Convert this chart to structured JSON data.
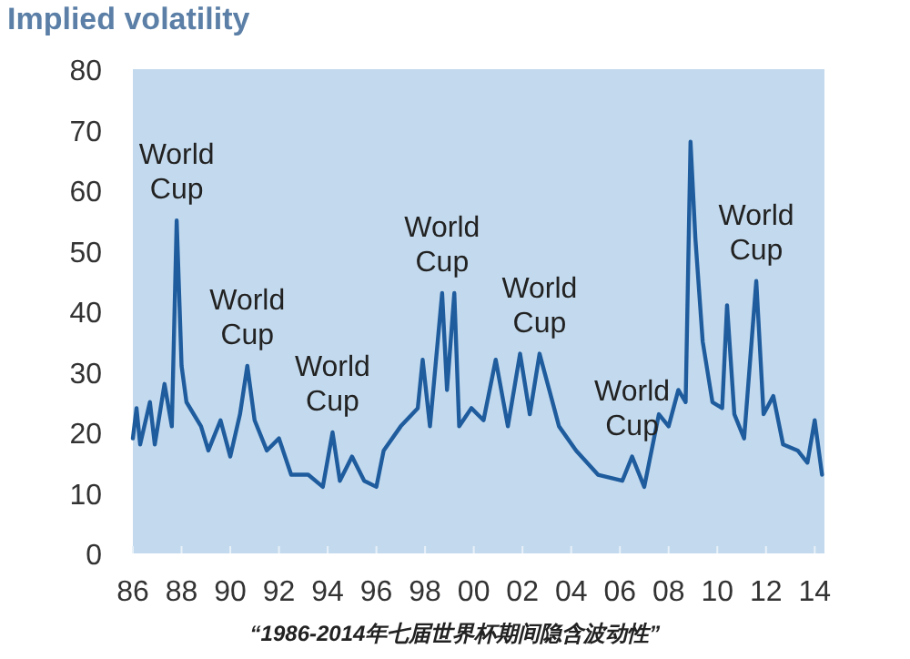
{
  "chart_data": {
    "type": "line",
    "title": "Implied volatility",
    "x": [
      1986.0,
      1986.15,
      1986.3,
      1986.7,
      1986.9,
      1987.3,
      1987.6,
      1987.8,
      1988.0,
      1988.2,
      1988.8,
      1989.1,
      1989.6,
      1990.0,
      1990.4,
      1990.7,
      1991.0,
      1991.5,
      1992.0,
      1992.5,
      1993.2,
      1993.8,
      1994.2,
      1994.5,
      1995.0,
      1995.5,
      1996.0,
      1996.3,
      1997.0,
      1997.7,
      1997.9,
      1998.2,
      1998.7,
      1998.9,
      1999.2,
      1999.4,
      1999.9,
      2000.4,
      2000.9,
      2001.4,
      2001.9,
      2002.3,
      2002.7,
      2003.1,
      2003.5,
      2004.2,
      2005.1,
      2006.1,
      2006.5,
      2007.0,
      2007.6,
      2008.0,
      2008.4,
      2008.7,
      2008.9,
      2009.1,
      2009.4,
      2009.8,
      2010.2,
      2010.4,
      2010.7,
      2011.1,
      2011.6,
      2011.9,
      2012.3,
      2012.7,
      2013.3,
      2013.7,
      2014.0,
      2014.3
    ],
    "series": [
      {
        "color": "#1f5c9e",
        "values": [
          19,
          24,
          18,
          25,
          18,
          28,
          21,
          55,
          31,
          25,
          21,
          17,
          22,
          16,
          23,
          31,
          22,
          17,
          19,
          13,
          13,
          11,
          20,
          12,
          16,
          12,
          11,
          17,
          21,
          24,
          32,
          21,
          43,
          27,
          43,
          21,
          24,
          22,
          32,
          21,
          33,
          23,
          33,
          27,
          21,
          17,
          13,
          12,
          16,
          11,
          23,
          21,
          27,
          25,
          68,
          52,
          35,
          25,
          24,
          41,
          23,
          19,
          45,
          23,
          26,
          18,
          17,
          15,
          22,
          13
        ]
      }
    ],
    "xlim": [
      1986,
      2014.4
    ],
    "ylim": [
      0,
      80
    ],
    "xticks": [
      {
        "value": 1986,
        "label": "86"
      },
      {
        "value": 1988,
        "label": "88"
      },
      {
        "value": 1990,
        "label": "90"
      },
      {
        "value": 1992,
        "label": "92"
      },
      {
        "value": 1994,
        "label": "94"
      },
      {
        "value": 1996,
        "label": "96"
      },
      {
        "value": 1998,
        "label": "98"
      },
      {
        "value": 2000,
        "label": "00"
      },
      {
        "value": 2002,
        "label": "02"
      },
      {
        "value": 2004,
        "label": "04"
      },
      {
        "value": 2006,
        "label": "06"
      },
      {
        "value": 2008,
        "label": "08"
      },
      {
        "value": 2010,
        "label": "10"
      },
      {
        "value": 2012,
        "label": "12"
      },
      {
        "value": 2014,
        "label": "14"
      }
    ],
    "yticks": [
      0,
      10,
      20,
      30,
      40,
      50,
      60,
      70,
      80
    ],
    "grid": false,
    "marker": "none",
    "line_style": "solid",
    "annotations": [
      {
        "text": "World\nCup",
        "x": 1987.8,
        "y": 55
      },
      {
        "text": "World\nCup",
        "x": 1990.7,
        "y": 31
      },
      {
        "text": "World\nCup",
        "x": 1994.2,
        "y": 20
      },
      {
        "text": "World\nCup",
        "x": 1998.7,
        "y": 43
      },
      {
        "text": "World\nCup",
        "x": 2002.7,
        "y": 33
      },
      {
        "text": "World\nCup",
        "x": 2006.5,
        "y": 16
      },
      {
        "text": "World\nCup",
        "x": 2011.6,
        "y": 45
      },
      "“1986-2014年七届世界杯期间隐含波动性”"
    ]
  }
}
